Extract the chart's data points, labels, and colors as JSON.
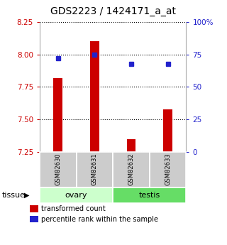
{
  "title": "GDS2223 / 1424171_a_at",
  "samples": [
    "GSM82630",
    "GSM82631",
    "GSM82632",
    "GSM82633"
  ],
  "bar_values": [
    7.82,
    8.1,
    7.35,
    7.58
  ],
  "dot_values": [
    72,
    75,
    68,
    68
  ],
  "ylim_left": [
    7.25,
    8.25
  ],
  "ylim_right": [
    0,
    100
  ],
  "yticks_left": [
    7.25,
    7.5,
    7.75,
    8.0,
    8.25
  ],
  "yticks_right": [
    0,
    25,
    50,
    75,
    100
  ],
  "bar_color": "#cc0000",
  "dot_color": "#2222cc",
  "bar_bottom": 7.25,
  "left_tick_color": "#cc0000",
  "right_tick_color": "#2222cc",
  "title_fontsize": 10,
  "legend_labels": [
    "transformed count",
    "percentile rank within the sample"
  ],
  "group_info": [
    {
      "name": "ovary",
      "start": 0,
      "end": 1,
      "color": "#ccffcc"
    },
    {
      "name": "testis",
      "start": 2,
      "end": 3,
      "color": "#66dd66"
    }
  ],
  "sample_box_color": "#cccccc",
  "bar_width": 0.25
}
